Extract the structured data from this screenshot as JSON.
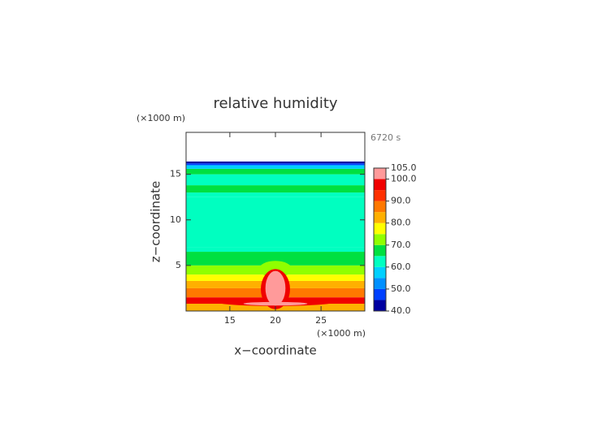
{
  "chart_data": {
    "type": "contour",
    "title": "relative humidity",
    "time_label": "6720 s",
    "x_label": "x−coordinate",
    "y_label": "z−coordinate",
    "x_unit": "(×1000 m)",
    "y_unit": "(×1000 m)",
    "xlim": [
      10.2,
      29.8
    ],
    "ylim": [
      0,
      19.6
    ],
    "xticks": [
      15,
      20,
      25
    ],
    "yticks": [
      5,
      10,
      15
    ],
    "clim": [
      40,
      105
    ],
    "cticks": [
      {
        "value": 40,
        "label": "40.0"
      },
      {
        "value": 50,
        "label": "50.0"
      },
      {
        "value": 60,
        "label": "60.0"
      },
      {
        "value": 70,
        "label": "70.0"
      },
      {
        "value": 80,
        "label": "80.0"
      },
      {
        "value": 90,
        "label": "90.0"
      },
      {
        "value": 100,
        "label": "100.0"
      },
      {
        "value": 105,
        "label": "105.0"
      }
    ],
    "colors": [
      "#0000a0",
      "#0040ff",
      "#0090ff",
      "#00d0ff",
      "#00ffc0",
      "#00e040",
      "#90ff00",
      "#ffff00",
      "#ffb000",
      "#ff7800",
      "#ff3000",
      "#f00000",
      "#ff9a9a"
    ],
    "layers": [
      {
        "z": [
          0,
          0.8
        ],
        "value": 83
      },
      {
        "z": [
          0.8,
          1.5
        ],
        "value": 96
      },
      {
        "z": [
          1.5,
          2.5
        ],
        "value": 88
      },
      {
        "z": [
          2.5,
          3.3
        ],
        "value": 83
      },
      {
        "z": [
          3.3,
          4.0
        ],
        "value": 77
      },
      {
        "z": [
          4.0,
          4.5
        ],
        "value": 73
      },
      {
        "z": [
          4.5,
          5.0
        ],
        "value": 70
      },
      {
        "z": [
          5.0,
          6.5
        ],
        "value": 67
      },
      {
        "z": [
          6.5,
          7.0
        ],
        "value": 64
      },
      {
        "z": [
          7.0,
          12.5
        ],
        "value": 62
      },
      {
        "z": [
          12.5,
          13.0
        ],
        "value": 64
      },
      {
        "z": [
          13.0,
          13.8
        ],
        "value": 67
      },
      {
        "z": [
          13.8,
          15.0
        ],
        "value": 63
      },
      {
        "z": [
          15.0,
          15.6
        ],
        "value": 67
      },
      {
        "z": [
          15.6,
          16.0
        ],
        "value": 57
      },
      {
        "z": [
          16.0,
          16.2
        ],
        "value": 47
      },
      {
        "z": [
          16.2,
          16.4
        ],
        "value": 42
      }
    ],
    "features": [
      {
        "x": 20,
        "z": 4.6,
        "rx": 1.8,
        "rz": 0.9,
        "value": 73
      },
      {
        "x": 20,
        "z": 1.0,
        "rx": 6.5,
        "rz": 0.45,
        "value": 97
      },
      {
        "x": 20,
        "z": 2.4,
        "rx": 1.6,
        "rz": 2.2,
        "value": 96
      },
      {
        "x": 20,
        "z": 2.5,
        "rx": 1.1,
        "rz": 1.9,
        "value": 102
      },
      {
        "x": 20,
        "z": 0.8,
        "rx": 3.5,
        "rz": 0.2,
        "value": 102
      }
    ]
  }
}
